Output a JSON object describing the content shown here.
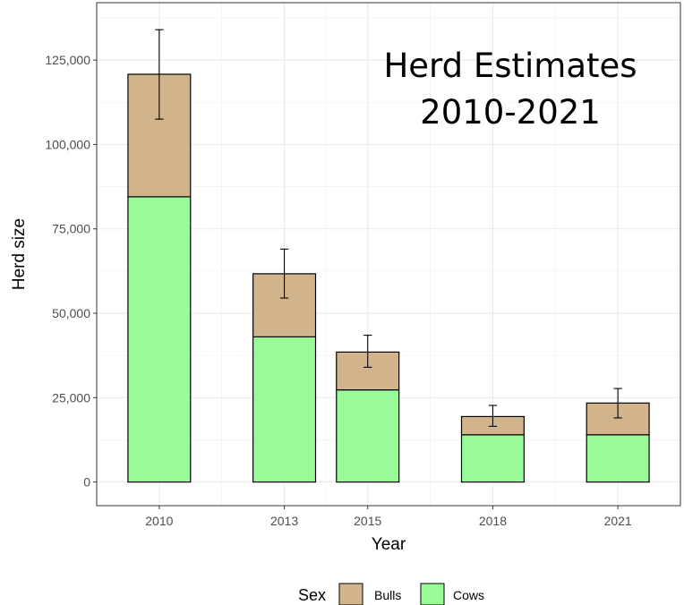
{
  "chart_data": {
    "type": "bar",
    "stacked": true,
    "title_lines": [
      "Herd Estimates",
      "2010-2021"
    ],
    "xlabel": "Year",
    "ylabel": "Herd size",
    "categories": [
      2010,
      2013,
      2015,
      2018,
      2021
    ],
    "xlim": [
      2008.5,
      2022.5
    ],
    "ylim": [
      -7000,
      142000
    ],
    "yticks": [
      0,
      25000,
      50000,
      75000,
      100000,
      125000
    ],
    "ytick_labels": [
      "0",
      "25,000",
      "50,000",
      "75,000",
      "100,000",
      "125,000"
    ],
    "xtick_labels": [
      "2010",
      "2013",
      "2015",
      "2018",
      "2021"
    ],
    "series": [
      {
        "name": "Cows",
        "color": "#98fb98",
        "values": [
          84500,
          43000,
          27300,
          14000,
          14000
        ]
      },
      {
        "name": "Bulls",
        "color": "#d2b48c",
        "values": [
          36300,
          18700,
          11200,
          5400,
          9400
        ]
      }
    ],
    "totals": [
      120800,
      61700,
      38500,
      19400,
      23400
    ],
    "error_bars": {
      "lower": [
        107500,
        54500,
        34000,
        16500,
        19000
      ],
      "upper": [
        134000,
        69000,
        43500,
        22700,
        27700
      ]
    },
    "bar_width_years": 1.5,
    "grid": true,
    "legend": {
      "title": "Sex",
      "position": "bottom",
      "entries": [
        {
          "label": "Bulls",
          "color": "#d2b48c"
        },
        {
          "label": "Cows",
          "color": "#98fb98"
        }
      ]
    }
  }
}
